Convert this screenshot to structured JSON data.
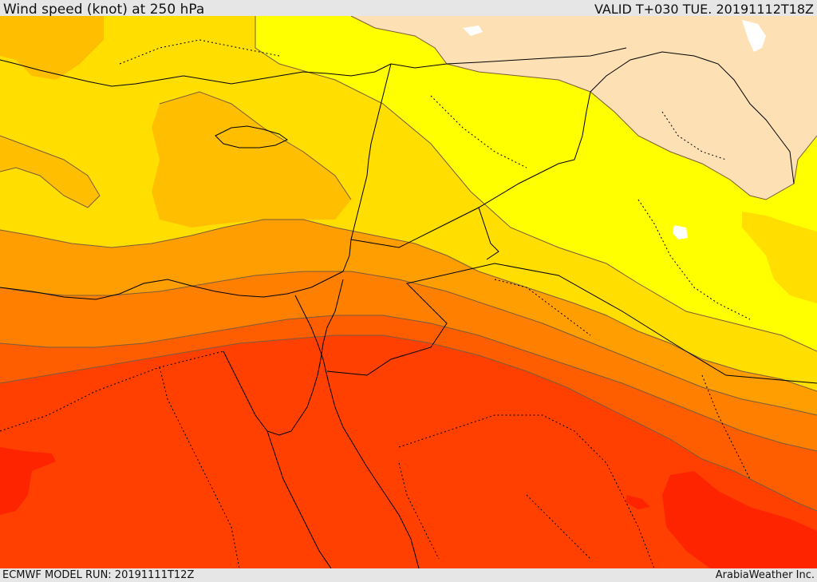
{
  "header": {
    "title": "Wind speed (knot) at 250 hPa",
    "valid": "VALID T+030 TUE. 20191112T18Z"
  },
  "footer": {
    "model_run": "ECMWF MODEL RUN: 20191111T12Z",
    "credit": "ArabiaWeather Inc."
  },
  "palette": {
    "band_1": "#fde1b4",
    "band_2": "#ffff00",
    "band_3": "#ffde00",
    "band_4": "#ffbf00",
    "band_5": "#ff9e00",
    "band_6": "#ff7f00",
    "band_7": "#ff5e00",
    "band_8": "#ff4000",
    "band_9": "#ff2400",
    "water": "#ffffff",
    "coastline": "#000000",
    "contour": "#7a5c3a"
  }
}
